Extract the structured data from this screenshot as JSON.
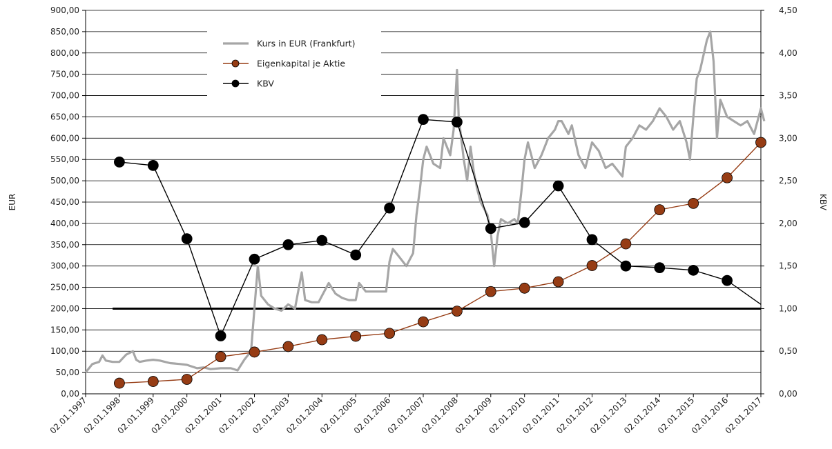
{
  "chart_data": {
    "type": "line",
    "y_left": {
      "label": "EUR",
      "min": 0,
      "max": 900,
      "step": 50,
      "ticks": [
        "0,00",
        "50,00",
        "100,00",
        "150,00",
        "200,00",
        "250,00",
        "300,00",
        "350,00",
        "400,00",
        "450,00",
        "500,00",
        "550,00",
        "600,00",
        "650,00",
        "700,00",
        "750,00",
        "800,00",
        "850,00",
        "900,00"
      ]
    },
    "y_right": {
      "label": "KBV",
      "min": 0,
      "max": 4.5,
      "step": 0.5,
      "ticks": [
        "0,00",
        "0,50",
        "1,00",
        "1,50",
        "2,00",
        "2,50",
        "3,00",
        "3,50",
        "4,00",
        "4,50"
      ]
    },
    "x_axis": {
      "start": 1997.0,
      "end": 2017.0,
      "ticks": [
        "02.01.1997",
        "02.01.1998",
        "02.01.1999",
        "02.01.2000",
        "02.01.2001",
        "02.01.2002",
        "02.01.2003",
        "02.01.2004",
        "02.01.2005",
        "02.01.2006",
        "02.01.2007",
        "02.01.2008",
        "02.01.2009",
        "02.01.2010",
        "02.01.2011",
        "02.01.2012",
        "02.01.2013",
        "02.01.2014",
        "02.01.2015",
        "02.01.2016",
        "02.01.2017"
      ]
    },
    "grid": "horizontal",
    "legend_position": "top-left",
    "reference_line": {
      "axis": "right",
      "value": 1.0,
      "x_from": 1997.8,
      "x_to": 2017.0
    },
    "series": [
      {
        "name": "Kurs in EUR (Frankfurt)",
        "axis": "left",
        "color": "#a6a6a6",
        "style": "line",
        "points": [
          [
            1997.0,
            50
          ],
          [
            1997.2,
            70
          ],
          [
            1997.4,
            75
          ],
          [
            1997.5,
            90
          ],
          [
            1997.6,
            78
          ],
          [
            1997.8,
            75
          ],
          [
            1998.0,
            75
          ],
          [
            1998.2,
            92
          ],
          [
            1998.4,
            100
          ],
          [
            1998.5,
            80
          ],
          [
            1998.6,
            75
          ],
          [
            1998.8,
            78
          ],
          [
            1999.0,
            80
          ],
          [
            1999.2,
            78
          ],
          [
            1999.5,
            72
          ],
          [
            1999.8,
            70
          ],
          [
            2000.0,
            68
          ],
          [
            2000.3,
            60
          ],
          [
            2000.5,
            62
          ],
          [
            2000.7,
            58
          ],
          [
            2001.0,
            60
          ],
          [
            2001.3,
            60
          ],
          [
            2001.5,
            55
          ],
          [
            2001.7,
            80
          ],
          [
            2001.9,
            100
          ],
          [
            2002.0,
            200
          ],
          [
            2002.1,
            300
          ],
          [
            2002.2,
            230
          ],
          [
            2002.4,
            210
          ],
          [
            2002.6,
            200
          ],
          [
            2002.8,
            195
          ],
          [
            2003.0,
            210
          ],
          [
            2003.2,
            200
          ],
          [
            2003.4,
            285
          ],
          [
            2003.5,
            220
          ],
          [
            2003.7,
            215
          ],
          [
            2003.9,
            215
          ],
          [
            2004.0,
            230
          ],
          [
            2004.2,
            260
          ],
          [
            2004.4,
            235
          ],
          [
            2004.6,
            225
          ],
          [
            2004.8,
            220
          ],
          [
            2005.0,
            220
          ],
          [
            2005.1,
            260
          ],
          [
            2005.3,
            240
          ],
          [
            2005.6,
            240
          ],
          [
            2005.8,
            240
          ],
          [
            2005.9,
            240
          ],
          [
            2006.0,
            310
          ],
          [
            2006.1,
            340
          ],
          [
            2006.3,
            320
          ],
          [
            2006.5,
            300
          ],
          [
            2006.7,
            330
          ],
          [
            2006.8,
            420
          ],
          [
            2006.9,
            480
          ],
          [
            2007.0,
            550
          ],
          [
            2007.1,
            580
          ],
          [
            2007.3,
            540
          ],
          [
            2007.5,
            530
          ],
          [
            2007.6,
            600
          ],
          [
            2007.8,
            560
          ],
          [
            2007.9,
            620
          ],
          [
            2008.0,
            760
          ],
          [
            2008.05,
            650
          ],
          [
            2008.2,
            550
          ],
          [
            2008.3,
            500
          ],
          [
            2008.4,
            580
          ],
          [
            2008.5,
            520
          ],
          [
            2008.6,
            480
          ],
          [
            2008.7,
            450
          ],
          [
            2008.9,
            420
          ],
          [
            2009.0,
            380
          ],
          [
            2009.1,
            300
          ],
          [
            2009.2,
            370
          ],
          [
            2009.3,
            410
          ],
          [
            2009.5,
            400
          ],
          [
            2009.7,
            410
          ],
          [
            2009.8,
            400
          ],
          [
            2009.9,
            470
          ],
          [
            2010.0,
            550
          ],
          [
            2010.1,
            590
          ],
          [
            2010.3,
            530
          ],
          [
            2010.5,
            560
          ],
          [
            2010.7,
            600
          ],
          [
            2010.9,
            620
          ],
          [
            2011.0,
            640
          ],
          [
            2011.1,
            640
          ],
          [
            2011.3,
            610
          ],
          [
            2011.4,
            630
          ],
          [
            2011.6,
            560
          ],
          [
            2011.8,
            530
          ],
          [
            2011.9,
            560
          ],
          [
            2012.0,
            590
          ],
          [
            2012.2,
            570
          ],
          [
            2012.4,
            530
          ],
          [
            2012.6,
            540
          ],
          [
            2012.8,
            520
          ],
          [
            2012.9,
            510
          ],
          [
            2013.0,
            580
          ],
          [
            2013.2,
            600
          ],
          [
            2013.4,
            630
          ],
          [
            2013.6,
            620
          ],
          [
            2013.8,
            640
          ],
          [
            2014.0,
            670
          ],
          [
            2014.2,
            650
          ],
          [
            2014.4,
            620
          ],
          [
            2014.6,
            640
          ],
          [
            2014.8,
            590
          ],
          [
            2014.9,
            550
          ],
          [
            2015.0,
            650
          ],
          [
            2015.1,
            740
          ],
          [
            2015.2,
            760
          ],
          [
            2015.4,
            830
          ],
          [
            2015.5,
            850
          ],
          [
            2015.6,
            780
          ],
          [
            2015.7,
            600
          ],
          [
            2015.8,
            690
          ],
          [
            2016.0,
            650
          ],
          [
            2016.2,
            640
          ],
          [
            2016.4,
            630
          ],
          [
            2016.6,
            640
          ],
          [
            2016.8,
            610
          ],
          [
            2016.9,
            640
          ],
          [
            2017.0,
            670
          ],
          [
            2017.1,
            640
          ]
        ]
      },
      {
        "name": "Eigenkapital je Aktie",
        "axis": "left",
        "color": "#963c14",
        "style": "line-markers",
        "points": [
          [
            1998.0,
            25
          ],
          [
            1999.0,
            29
          ],
          [
            2000.0,
            34
          ],
          [
            2001.0,
            87
          ],
          [
            2002.0,
            98
          ],
          [
            2003.0,
            111
          ],
          [
            2004.0,
            127
          ],
          [
            2005.0,
            135
          ],
          [
            2006.0,
            142
          ],
          [
            2007.0,
            169
          ],
          [
            2008.0,
            194
          ],
          [
            2009.0,
            240
          ],
          [
            2010.0,
            248
          ],
          [
            2011.0,
            263
          ],
          [
            2012.0,
            301
          ],
          [
            2013.0,
            352
          ],
          [
            2014.0,
            432
          ],
          [
            2015.0,
            447
          ],
          [
            2016.0,
            507
          ],
          [
            2017.0,
            590
          ]
        ]
      },
      {
        "name": "KBV",
        "axis": "right",
        "color": "#000000",
        "style": "line-markers",
        "points": [
          [
            1998.0,
            2.72
          ],
          [
            1999.0,
            2.68
          ],
          [
            2000.0,
            1.82
          ],
          [
            2001.0,
            0.68
          ],
          [
            2002.0,
            1.58
          ],
          [
            2003.0,
            1.75
          ],
          [
            2004.0,
            1.8
          ],
          [
            2005.0,
            1.63
          ],
          [
            2006.0,
            2.18
          ],
          [
            2007.0,
            3.22
          ],
          [
            2008.0,
            3.19
          ],
          [
            2009.0,
            1.94
          ],
          [
            2010.0,
            2.01
          ],
          [
            2011.0,
            2.44
          ],
          [
            2012.0,
            1.81
          ],
          [
            2013.0,
            1.5
          ],
          [
            2014.0,
            1.48
          ],
          [
            2015.0,
            1.45
          ],
          [
            2016.0,
            1.33
          ],
          [
            2017.0,
            1.05
          ]
        ]
      }
    ]
  }
}
